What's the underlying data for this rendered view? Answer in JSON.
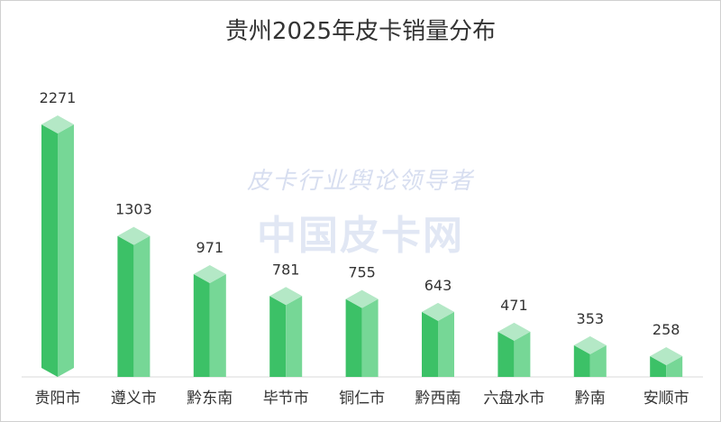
{
  "chart_data": {
    "type": "bar",
    "title": "贵州2025年皮卡销量分布",
    "categories": [
      "贵阳市",
      "遵义市",
      "黔东南",
      "毕节市",
      "铜仁市",
      "黔西南",
      "六盘水市",
      "黔南",
      "安顺市"
    ],
    "values": [
      2271,
      1303,
      971,
      781,
      755,
      643,
      471,
      353,
      258
    ],
    "xlabel": "",
    "ylabel": "",
    "ylim": [
      0,
      2271
    ],
    "grid": false,
    "legend": "none",
    "colors": {
      "front": "#3cc167",
      "side": "#76d796",
      "top": "#b4e8c6",
      "axis": "#d9d9d9"
    }
  },
  "watermark": {
    "line1": "皮卡行业舆论领导者",
    "line2": "中国皮卡网"
  }
}
